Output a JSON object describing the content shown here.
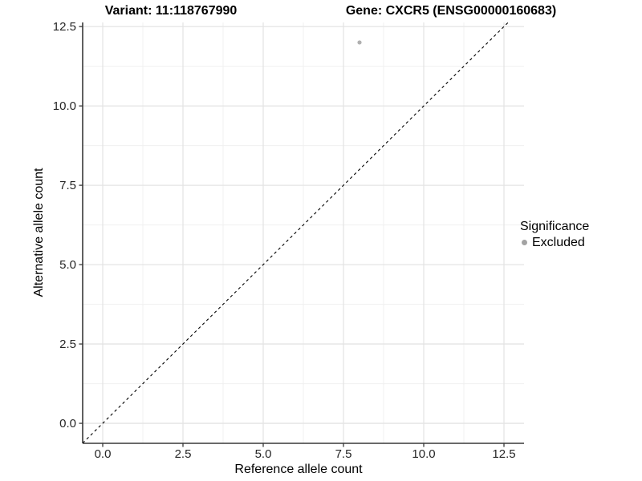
{
  "chart_data": {
    "type": "scatter",
    "titles": {
      "left": "Variant: 11:118767990",
      "right": "Gene: CXCR5 (ENSG00000160683)"
    },
    "xlabel": "Reference allele count",
    "ylabel": "Alternative allele count",
    "xlim": [
      -0.625,
      13.125
    ],
    "ylim": [
      -0.63,
      12.63
    ],
    "x_ticks": {
      "values": [
        0,
        2.5,
        5,
        7.5,
        10,
        12.5
      ],
      "labels": [
        "0.0",
        "2.5",
        "5.0",
        "7.5",
        "10.0",
        "12.5"
      ]
    },
    "y_ticks": {
      "values": [
        0,
        2.5,
        5,
        7.5,
        10,
        12.5
      ],
      "labels": [
        "0.0",
        "2.5",
        "5.0",
        "7.5",
        "10.0",
        "12.5"
      ]
    },
    "minor_step": 1.25,
    "grid": true,
    "series": [
      {
        "name": "Excluded",
        "color": "#b0b0b0",
        "points": [
          {
            "x": 8,
            "y": 12
          }
        ]
      }
    ],
    "reference_line": {
      "type": "abline",
      "slope": 1,
      "intercept": 0,
      "style": "dashed",
      "color": "#000000"
    },
    "legend": {
      "title": "Significance",
      "position": "right",
      "entries": [
        {
          "label": "Excluded",
          "color": "#a3a3a3"
        }
      ]
    },
    "colors": {
      "grid_major": "#e4e4e4",
      "grid_minor": "#f0f0f0",
      "axis_line": "#383838",
      "tick_label": "#262626"
    }
  }
}
